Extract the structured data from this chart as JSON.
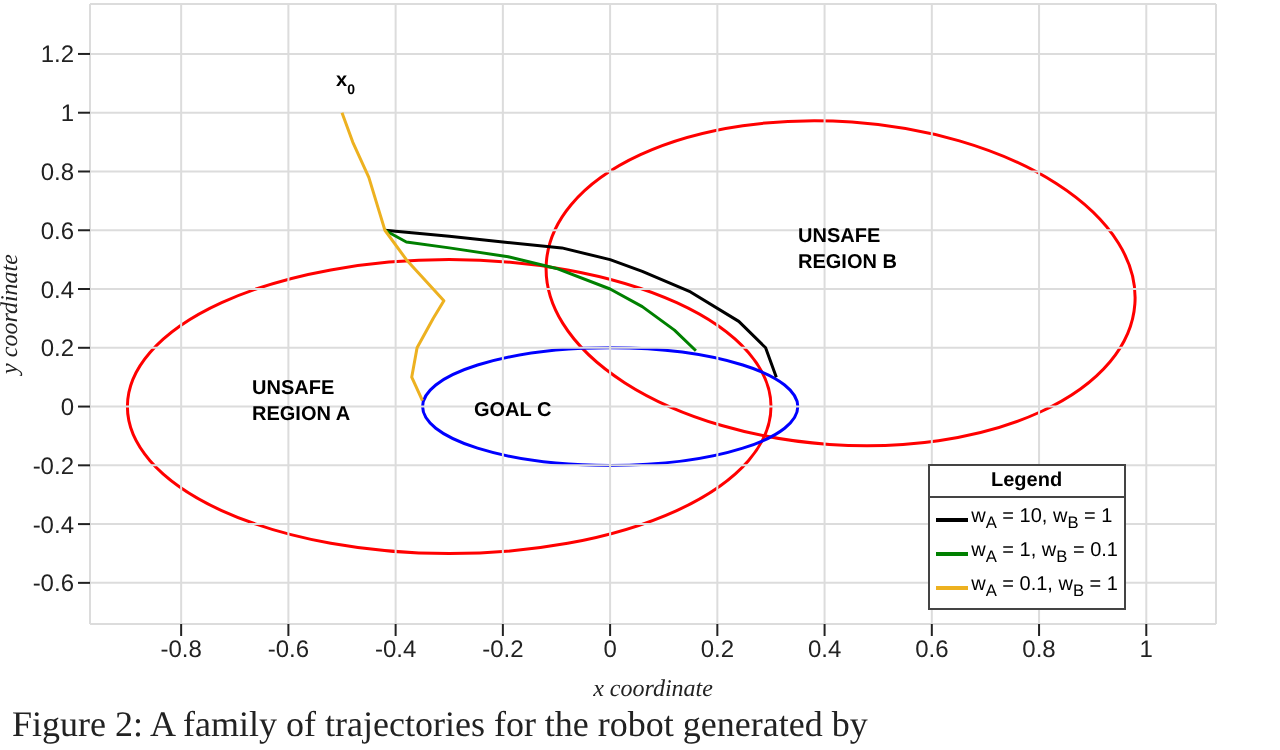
{
  "chart_data": {
    "type": "line",
    "xlabel": "x coordinate",
    "ylabel": "y coordinate",
    "xlim": [
      -0.97,
      1.13
    ],
    "ylim": [
      -0.74,
      1.37
    ],
    "xticks": [
      -0.8,
      -0.6,
      -0.4,
      -0.2,
      0,
      0.2,
      0.4,
      0.6,
      0.8,
      1
    ],
    "yticks": [
      -0.6,
      -0.4,
      -0.2,
      0,
      0.2,
      0.4,
      0.6,
      0.8,
      1,
      1.2
    ],
    "grid": true,
    "legend": "bottom right",
    "legend_title": "Legend",
    "marker": "none",
    "line_style": "solid",
    "series": [
      {
        "name": "w$_{A}$ = 10, w$_{B}$ = 1",
        "color": "#000000",
        "x": [
          -0.42,
          -0.3,
          -0.2,
          -0.09,
          0,
          0.06,
          0.15,
          0.24,
          0.29,
          0.31
        ],
        "values": [
          0.6,
          0.58,
          0.56,
          0.54,
          0.5,
          0.46,
          0.39,
          0.29,
          0.2,
          0.1
        ]
      },
      {
        "name": "w$_{A}$ = 1, w$_{B}$ = 0.1",
        "color": "#008000",
        "x": [
          -0.42,
          -0.38,
          -0.3,
          -0.19,
          -0.1,
          0,
          0.06,
          0.12,
          0.16
        ],
        "values": [
          0.6,
          0.56,
          0.54,
          0.51,
          0.47,
          0.4,
          0.34,
          0.26,
          0.19
        ]
      },
      {
        "name": "w$_{A}$ = 0.1, w$_{B}$ = 1",
        "color": "#edb120",
        "x": [
          -0.5,
          -0.48,
          -0.45,
          -0.43,
          -0.42,
          -0.38,
          -0.33,
          -0.31,
          -0.33,
          -0.36,
          -0.37,
          -0.35
        ],
        "values": [
          1,
          0.9,
          0.78,
          0.66,
          0.6,
          0.5,
          0.4,
          0.36,
          0.3,
          0.2,
          0.1,
          0.02
        ]
      }
    ],
    "annotations": [
      "x$_{0}$",
      "UNSAFE\nREGION A",
      "UNSAFE\nREGION B",
      "GOAL C",
      "Figure 2: A family of trajectories for the robot generated by"
    ]
  }
}
